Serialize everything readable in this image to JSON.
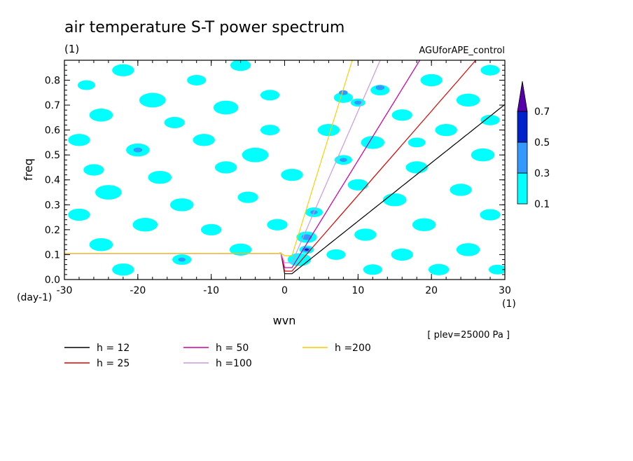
{
  "chart_data": {
    "type": "heatmap",
    "title": "air temperature S-T power spectrum",
    "units_label": "(1)",
    "run_label": "AGUforAPE_control",
    "xlabel": "wvn",
    "ylabel": "freq",
    "x_units": "(1)",
    "y_units": "(day-1)",
    "xlim": [
      -30,
      30
    ],
    "ylim": [
      0,
      0.88
    ],
    "xticks": [
      "-30",
      "-20",
      "-10",
      "0",
      "10",
      "20",
      "30"
    ],
    "yticks": [
      "0.0",
      "0.1",
      "0.2",
      "0.3",
      "0.4",
      "0.5",
      "0.6",
      "0.7",
      "0.8"
    ],
    "annotation": "[ plev=25000 Pa ]",
    "colorbar": {
      "levels": [
        "0.1",
        "0.3",
        "0.5",
        "0.7"
      ],
      "colors": [
        "#00ffff",
        "#3399ff",
        "#0022cc",
        "#5500aa"
      ]
    },
    "blobs": [
      {
        "x": -27,
        "y": 0.78,
        "r": 1.2,
        "level": 1
      },
      {
        "x": -22,
        "y": 0.84,
        "r": 1.5,
        "level": 1
      },
      {
        "x": -18,
        "y": 0.72,
        "r": 1.8,
        "level": 1
      },
      {
        "x": -12,
        "y": 0.8,
        "r": 1.3,
        "level": 1
      },
      {
        "x": -6,
        "y": 0.86,
        "r": 1.4,
        "level": 1
      },
      {
        "x": -25,
        "y": 0.66,
        "r": 1.6,
        "level": 1
      },
      {
        "x": -15,
        "y": 0.63,
        "r": 1.4,
        "level": 1
      },
      {
        "x": -8,
        "y": 0.69,
        "r": 1.7,
        "level": 1
      },
      {
        "x": -2,
        "y": 0.74,
        "r": 1.3,
        "level": 1
      },
      {
        "x": -28,
        "y": 0.56,
        "r": 1.5,
        "level": 1
      },
      {
        "x": -20,
        "y": 0.52,
        "r": 1.6,
        "level": 1
      },
      {
        "x": -20,
        "y": 0.52,
        "r": 0.6,
        "level": 2
      },
      {
        "x": -11,
        "y": 0.56,
        "r": 1.5,
        "level": 1
      },
      {
        "x": -4,
        "y": 0.5,
        "r": 1.8,
        "level": 1
      },
      {
        "x": -26,
        "y": 0.44,
        "r": 1.4,
        "level": 1
      },
      {
        "x": -17,
        "y": 0.41,
        "r": 1.6,
        "level": 1
      },
      {
        "x": -8,
        "y": 0.45,
        "r": 1.5,
        "level": 1
      },
      {
        "x": -24,
        "y": 0.35,
        "r": 1.8,
        "level": 1
      },
      {
        "x": -14,
        "y": 0.3,
        "r": 1.6,
        "level": 1
      },
      {
        "x": -5,
        "y": 0.33,
        "r": 1.4,
        "level": 1
      },
      {
        "x": -28,
        "y": 0.26,
        "r": 1.5,
        "level": 1
      },
      {
        "x": -19,
        "y": 0.22,
        "r": 1.7,
        "level": 1
      },
      {
        "x": -10,
        "y": 0.2,
        "r": 1.4,
        "level": 1
      },
      {
        "x": -25,
        "y": 0.14,
        "r": 1.6,
        "level": 1
      },
      {
        "x": -14,
        "y": 0.08,
        "r": 1.3,
        "level": 1
      },
      {
        "x": -14,
        "y": 0.08,
        "r": 0.5,
        "level": 2
      },
      {
        "x": -6,
        "y": 0.12,
        "r": 1.5,
        "level": 1
      },
      {
        "x": -22,
        "y": 0.04,
        "r": 1.5,
        "level": 1
      },
      {
        "x": 2,
        "y": 0.08,
        "r": 1.6,
        "level": 1
      },
      {
        "x": 3,
        "y": 0.17,
        "r": 1.4,
        "level": 1
      },
      {
        "x": 3,
        "y": 0.17,
        "r": 0.7,
        "level": 2
      },
      {
        "x": 3,
        "y": 0.12,
        "r": 1.0,
        "level": 1
      },
      {
        "x": 3,
        "y": 0.12,
        "r": 0.6,
        "level": 2
      },
      {
        "x": 3,
        "y": 0.12,
        "r": 0.3,
        "level": 3
      },
      {
        "x": 4,
        "y": 0.27,
        "r": 1.2,
        "level": 1
      },
      {
        "x": 4,
        "y": 0.27,
        "r": 0.5,
        "level": 2
      },
      {
        "x": 8,
        "y": 0.73,
        "r": 1.3,
        "level": 1
      },
      {
        "x": 8,
        "y": 0.75,
        "r": 0.6,
        "level": 2
      },
      {
        "x": 10,
        "y": 0.71,
        "r": 1.0,
        "level": 1
      },
      {
        "x": 10,
        "y": 0.71,
        "r": 0.5,
        "level": 2
      },
      {
        "x": 13,
        "y": 0.76,
        "r": 1.3,
        "level": 1
      },
      {
        "x": 13,
        "y": 0.77,
        "r": 0.6,
        "level": 2
      },
      {
        "x": 8,
        "y": 0.48,
        "r": 1.2,
        "level": 1
      },
      {
        "x": 8,
        "y": 0.48,
        "r": 0.5,
        "level": 2
      },
      {
        "x": 6,
        "y": 0.6,
        "r": 1.5,
        "level": 1
      },
      {
        "x": 12,
        "y": 0.55,
        "r": 1.6,
        "level": 1
      },
      {
        "x": 16,
        "y": 0.66,
        "r": 1.4,
        "level": 1
      },
      {
        "x": 20,
        "y": 0.8,
        "r": 1.5,
        "level": 1
      },
      {
        "x": 25,
        "y": 0.72,
        "r": 1.6,
        "level": 1
      },
      {
        "x": 28,
        "y": 0.84,
        "r": 1.3,
        "level": 1
      },
      {
        "x": 22,
        "y": 0.6,
        "r": 1.5,
        "level": 1
      },
      {
        "x": 27,
        "y": 0.5,
        "r": 1.6,
        "level": 1
      },
      {
        "x": 18,
        "y": 0.45,
        "r": 1.5,
        "level": 1
      },
      {
        "x": 10,
        "y": 0.38,
        "r": 1.4,
        "level": 1
      },
      {
        "x": 15,
        "y": 0.32,
        "r": 1.6,
        "level": 1
      },
      {
        "x": 24,
        "y": 0.36,
        "r": 1.5,
        "level": 1
      },
      {
        "x": 28,
        "y": 0.26,
        "r": 1.4,
        "level": 1
      },
      {
        "x": 19,
        "y": 0.22,
        "r": 1.6,
        "level": 1
      },
      {
        "x": 11,
        "y": 0.18,
        "r": 1.5,
        "level": 1
      },
      {
        "x": 7,
        "y": 0.1,
        "r": 1.3,
        "level": 1
      },
      {
        "x": 16,
        "y": 0.1,
        "r": 1.5,
        "level": 1
      },
      {
        "x": 25,
        "y": 0.12,
        "r": 1.6,
        "level": 1
      },
      {
        "x": 29,
        "y": 0.04,
        "r": 1.2,
        "level": 1
      },
      {
        "x": 21,
        "y": 0.04,
        "r": 1.4,
        "level": 1
      },
      {
        "x": 12,
        "y": 0.04,
        "r": 1.3,
        "level": 1
      },
      {
        "x": -2,
        "y": 0.6,
        "r": 1.3,
        "level": 1
      },
      {
        "x": 1,
        "y": 0.42,
        "r": 1.5,
        "level": 1
      },
      {
        "x": -1,
        "y": 0.22,
        "r": 1.4,
        "level": 1
      },
      {
        "x": 18,
        "y": 0.55,
        "r": 1.2,
        "level": 1
      },
      {
        "x": 28,
        "y": 0.64,
        "r": 1.3,
        "level": 1
      }
    ],
    "series": [
      {
        "name": "h = 12",
        "color": "#000000",
        "h": 12
      },
      {
        "name": "h = 25",
        "color": "#dd0000",
        "h": 25
      },
      {
        "name": "h = 50",
        "color": "#cc00aa",
        "h": 50
      },
      {
        "name": "h =100",
        "color": "#cc99dd",
        "h": 100
      },
      {
        "name": "h =200",
        "color": "#ffcc00",
        "h": 200
      }
    ]
  }
}
